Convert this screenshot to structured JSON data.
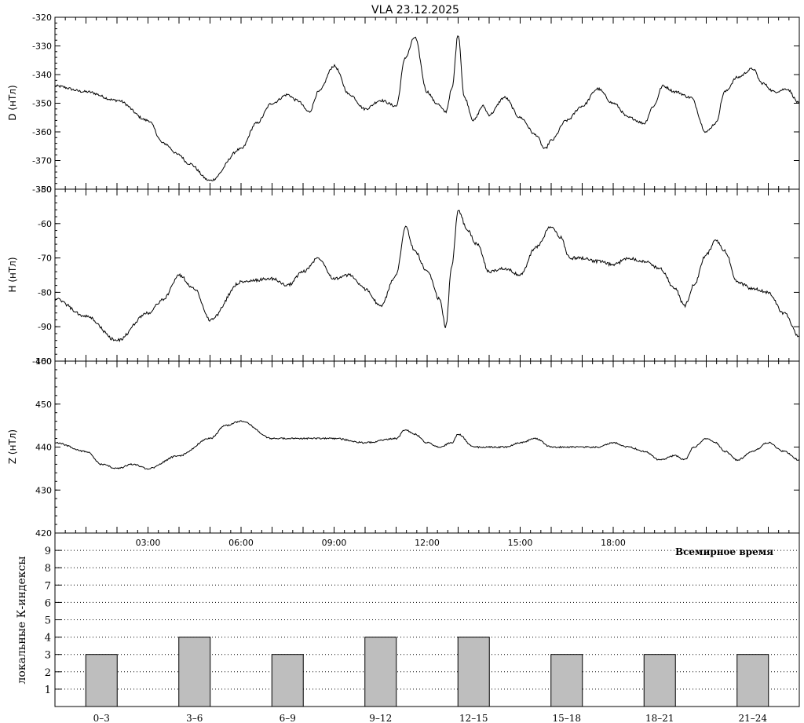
{
  "chart_data": [
    {
      "panel": "D",
      "type": "line",
      "title": "VLA   23.12.2025",
      "ylabel": "D (нТл)",
      "ylim": [
        -380,
        -320
      ],
      "yticks": [
        "-320",
        "-330",
        "-340",
        "-350",
        "-360",
        "-370",
        "-380"
      ],
      "xlim": [
        0,
        24
      ],
      "color": "#000000",
      "x": [
        0,
        1,
        2,
        3,
        3.5,
        4,
        4.3,
        5,
        6,
        6.5,
        7,
        7.5,
        7.8,
        8.2,
        8.5,
        9,
        9.5,
        10,
        10.5,
        11,
        11.3,
        11.6,
        12,
        12.3,
        12.6,
        12.8,
        13,
        13.2,
        13.5,
        13.8,
        14,
        14.5,
        15,
        15.5,
        15.8,
        16,
        16.5,
        17,
        17.5,
        18,
        18.5,
        19,
        19.3,
        19.6,
        20,
        20.5,
        21,
        21.3,
        21.6,
        22,
        22.5,
        22.8,
        23.2,
        23.6,
        24
      ],
      "y": [
        -344,
        -346,
        -349,
        -356,
        -364,
        -368,
        -371,
        -377,
        -366,
        -357,
        -350,
        -347,
        -349,
        -353,
        -346,
        -337,
        -347,
        -352,
        -349,
        -351,
        -334,
        -327,
        -346,
        -350,
        -353,
        -345,
        -326,
        -348,
        -356,
        -351,
        -354,
        -348,
        -355,
        -361,
        -366,
        -363,
        -356,
        -351,
        -345,
        -350,
        -355,
        -357,
        -351,
        -344,
        -346,
        -348,
        -360,
        -357,
        -346,
        -341,
        -338,
        -343,
        -346,
        -345,
        -350
      ]
    },
    {
      "panel": "H",
      "type": "line",
      "ylabel": "H (нТл)",
      "ylim": [
        -100,
        -50
      ],
      "yticks": [
        "-50",
        "-60",
        "-70",
        "-80",
        "-90",
        "-100"
      ],
      "xlim": [
        0,
        24
      ],
      "color": "#000000",
      "x": [
        0,
        1,
        2,
        3,
        3.5,
        4,
        4.5,
        5,
        6,
        7,
        7.5,
        8,
        8.5,
        9,
        9.5,
        10,
        10.5,
        11,
        11.3,
        11.6,
        12,
        12.4,
        12.6,
        12.8,
        13,
        13.3,
        13.6,
        14,
        14.5,
        15,
        15.5,
        16,
        16.3,
        16.6,
        17,
        17.5,
        18,
        18.5,
        19,
        19.5,
        20,
        20.3,
        20.6,
        21,
        21.3,
        21.6,
        22,
        22.5,
        23,
        23.5,
        24
      ],
      "y": [
        -82,
        -87,
        -94,
        -86,
        -82,
        -75,
        -79,
        -88,
        -77,
        -76,
        -78,
        -74,
        -70,
        -76,
        -75,
        -79,
        -84,
        -75,
        -61,
        -68,
        -74,
        -82,
        -90,
        -72,
        -56,
        -62,
        -66,
        -74,
        -73,
        -75,
        -67,
        -61,
        -64,
        -70,
        -70,
        -71,
        -72,
        -70,
        -71,
        -73,
        -79,
        -84,
        -78,
        -69,
        -65,
        -68,
        -77,
        -79,
        -80,
        -86,
        -93
      ]
    },
    {
      "panel": "Z",
      "type": "line",
      "ylabel": "Z (нТл)",
      "ylim": [
        420,
        460
      ],
      "yticks": [
        "460",
        "450",
        "440",
        "430",
        "420"
      ],
      "xlim": [
        0,
        24
      ],
      "color": "#000000",
      "x": [
        0,
        1,
        1.5,
        2,
        2.5,
        3,
        4,
        5,
        5.5,
        6,
        7,
        8,
        9,
        10,
        11,
        11.3,
        11.6,
        12,
        12.4,
        12.8,
        13,
        13.5,
        14,
        14.5,
        15,
        15.5,
        16,
        16.5,
        17,
        17.5,
        18,
        18.5,
        19,
        19.5,
        20,
        20.3,
        20.6,
        21,
        21.3,
        21.6,
        22,
        22.5,
        23,
        23.5,
        24
      ],
      "y": [
        441,
        439,
        436,
        435,
        436,
        435,
        438,
        442,
        445,
        446,
        442,
        442,
        442,
        441,
        442,
        444,
        443,
        441,
        440,
        441,
        443,
        440,
        440,
        440,
        441,
        442,
        440,
        440,
        440,
        440,
        441,
        440,
        439,
        437,
        438,
        437,
        440,
        442,
        441,
        439,
        437,
        439,
        441,
        439,
        437
      ]
    },
    {
      "panel": "K",
      "type": "bar",
      "ylabel": "локальные К-индексы",
      "ylim": [
        0,
        10
      ],
      "yticks": [
        "1",
        "2",
        "3",
        "4",
        "5",
        "6",
        "7",
        "8",
        "9"
      ],
      "categories": [
        "0-3",
        "3-6",
        "6-9",
        "9-12",
        "12-15",
        "15-18",
        "18-21",
        "21-24"
      ],
      "values": [
        3,
        4,
        3,
        4,
        4,
        3,
        3,
        3
      ],
      "bar_color": "#bebebe",
      "grid": "dotted-horizontal"
    }
  ],
  "time_axis": {
    "ticks": [
      "03:00",
      "06:00",
      "09:00",
      "12:00",
      "15:00",
      "18:00"
    ],
    "label": "Всемирное время"
  }
}
